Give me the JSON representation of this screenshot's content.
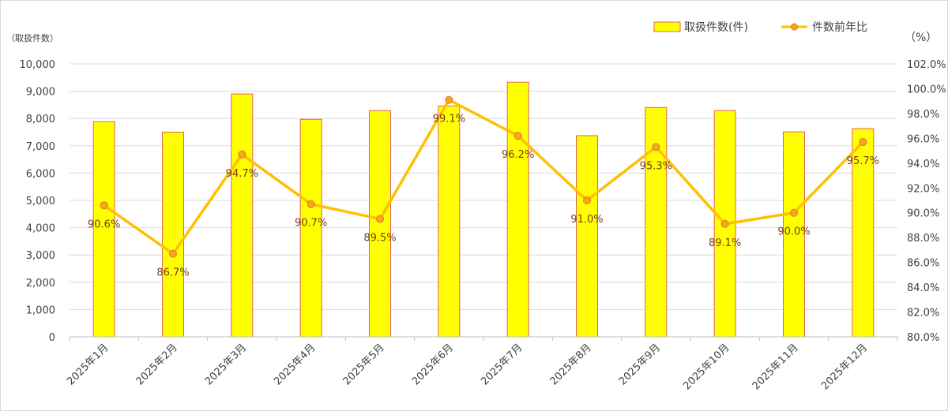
{
  "chart_data": {
    "type": "bar+line",
    "left_unit_label": "（取扱件数）",
    "right_unit_label": "（%）",
    "categories": [
      "2025年1月",
      "2025年2月",
      "2025年3月",
      "2025年4月",
      "2025年5月",
      "2025年6月",
      "2025年7月",
      "2025年8月",
      "2025年9月",
      "2025年10月",
      "2025年11月",
      "2025年12月"
    ],
    "series": [
      {
        "name": "取扱件数(件)",
        "type": "bar",
        "axis": "left",
        "values": [
          7880,
          7500,
          8900,
          7970,
          8290,
          8460,
          9330,
          7370,
          8400,
          8290,
          7510,
          7630
        ]
      },
      {
        "name": "件数前年比",
        "type": "line",
        "axis": "right",
        "values": [
          90.6,
          86.7,
          94.7,
          90.7,
          89.5,
          99.1,
          96.2,
          91.0,
          95.3,
          89.1,
          90.0,
          95.7
        ],
        "labels": [
          "90.6%",
          "86.7%",
          "94.7%",
          "90.7%",
          "89.5%",
          "99.1%",
          "96.2%",
          "91.0%",
          "95.3%",
          "89.1%",
          "90.0%",
          "95.7%"
        ]
      }
    ],
    "y_left": {
      "min": 0,
      "max": 10000,
      "step": 1000,
      "ticks": [
        "0",
        "1,000",
        "2,000",
        "3,000",
        "4,000",
        "5,000",
        "6,000",
        "7,000",
        "8,000",
        "9,000",
        "10,000"
      ]
    },
    "y_right": {
      "min": 80,
      "max": 102,
      "step": 2,
      "ticks": [
        "80.0%",
        "82.0%",
        "84.0%",
        "86.0%",
        "88.0%",
        "90.0%",
        "92.0%",
        "94.0%",
        "96.0%",
        "98.0%",
        "100.0%",
        "102.0%"
      ]
    },
    "grid": true,
    "legend_position": "top-right",
    "colors": {
      "bar_fill": "#ffff00",
      "bar_stroke": "#e0645a",
      "line": "#ffc000",
      "marker_fill": "#f5a623",
      "marker_stroke": "#e07a1a",
      "grid": "#d9d9d9",
      "label": "#7a3b1a"
    }
  }
}
